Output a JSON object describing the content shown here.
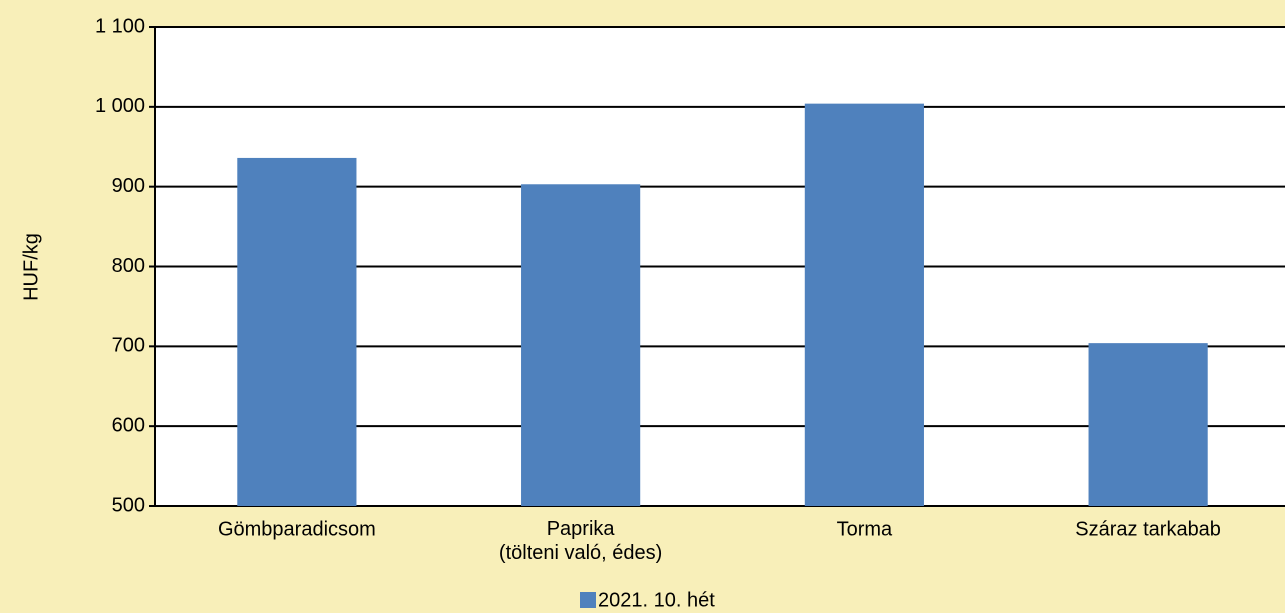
{
  "chart_data": {
    "type": "bar",
    "y_label": "HUF/kg",
    "categories": [
      "Gömbparadicsom",
      "Paprika\n(tölteni való, édes)",
      "Torma",
      "Száraz tarkabab"
    ],
    "series": [
      {
        "name": "2021. 10. hét",
        "color": "#4f81bd",
        "values": [
          936,
          903,
          1004,
          704
        ]
      }
    ],
    "ylim": [
      500,
      1100
    ],
    "yticks": [
      500,
      600,
      700,
      800,
      900,
      {
        "value": 1000,
        "label": "1 000"
      },
      {
        "value": 1100,
        "label": "1 100"
      }
    ],
    "grid": true
  }
}
